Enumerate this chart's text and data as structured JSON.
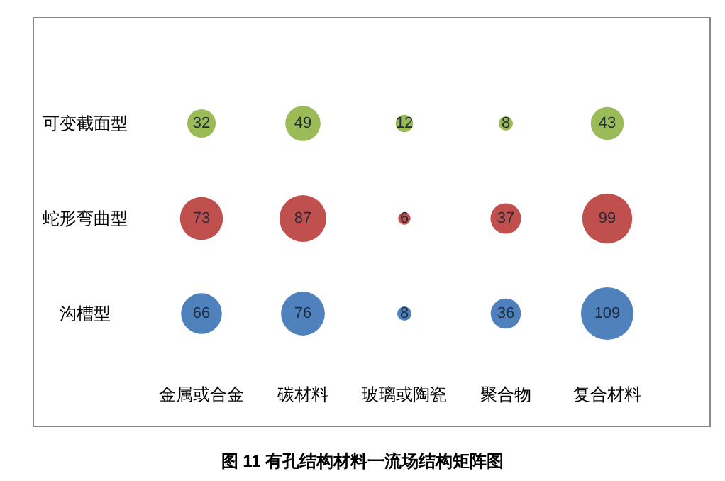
{
  "chart_data": {
    "type": "heatmap",
    "categories": [
      "金属或合金",
      "碳材料",
      "玻璃或陶瓷",
      "聚合物",
      "复合材料"
    ],
    "y_categories": [
      "可变截面型",
      "蛇形弯曲型",
      "沟槽型"
    ],
    "cells": [
      [
        32,
        49,
        12,
        8,
        43
      ],
      [
        73,
        87,
        6,
        37,
        99
      ],
      [
        66,
        76,
        8,
        36,
        109
      ]
    ],
    "colors": [
      "#9bbb59",
      "#c0504d",
      "#4f81bd"
    ],
    "data_labels": true,
    "annotations": [
      "图 11 有孔结构材料一流场结构矩阵图"
    ]
  }
}
